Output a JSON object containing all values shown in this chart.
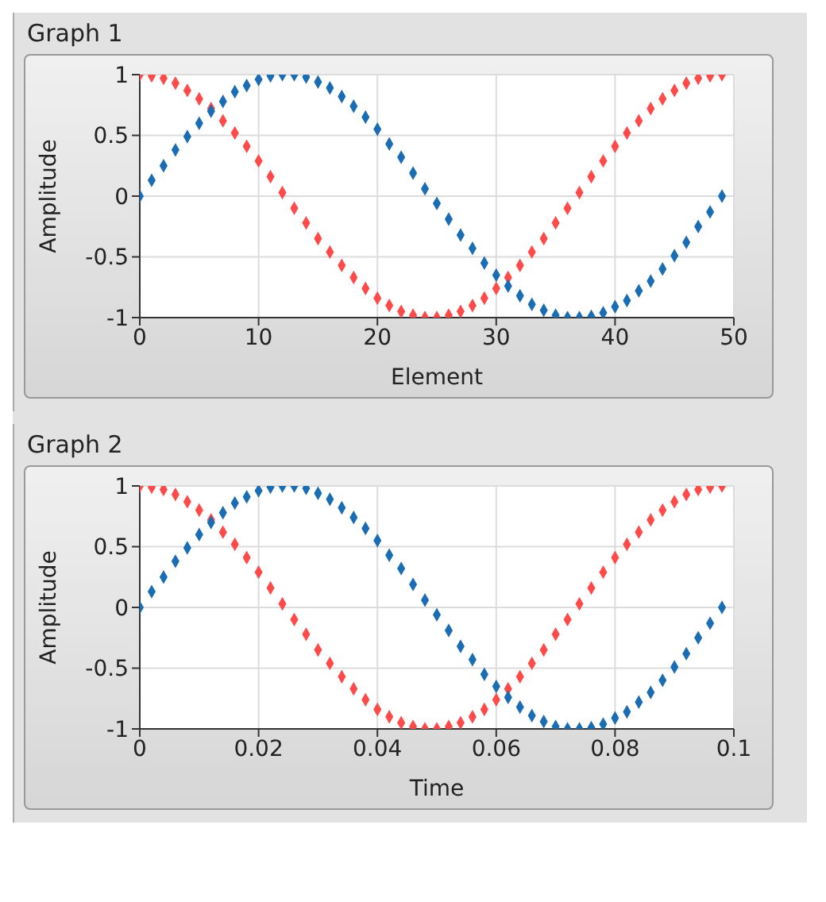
{
  "chart_data": [
    {
      "type": "scatter",
      "title": "Graph 1",
      "xlabel": "Element",
      "ylabel": "Amplitude",
      "marker": "diamond",
      "grid": true,
      "x": [
        0,
        1,
        2,
        3,
        4,
        5,
        6,
        7,
        8,
        9,
        10,
        11,
        12,
        13,
        14,
        15,
        16,
        17,
        18,
        19,
        20,
        21,
        22,
        23,
        24,
        25,
        26,
        27,
        28,
        29,
        30,
        31,
        32,
        33,
        34,
        35,
        36,
        37,
        38,
        39,
        40,
        41,
        42,
        43,
        44,
        45,
        46,
        47,
        48,
        49
      ],
      "xlim": [
        0,
        50
      ],
      "xticks": [
        0,
        10,
        20,
        30,
        40,
        50
      ],
      "ylim": [
        -1,
        1
      ],
      "yticks": [
        -1,
        -0.5,
        0,
        0.5,
        1
      ],
      "series": [
        {
          "color": "#ff4a4a",
          "values": [
            1,
            0.99,
            0.97,
            0.93,
            0.87,
            0.8,
            0.72,
            0.62,
            0.52,
            0.41,
            0.29,
            0.16,
            0.03,
            -0.1,
            -0.22,
            -0.35,
            -0.46,
            -0.57,
            -0.67,
            -0.76,
            -0.84,
            -0.9,
            -0.95,
            -0.98,
            -1,
            -1,
            -0.98,
            -0.95,
            -0.9,
            -0.84,
            -0.76,
            -0.67,
            -0.57,
            -0.46,
            -0.35,
            -0.22,
            -0.1,
            0.03,
            0.16,
            0.29,
            0.41,
            0.52,
            0.62,
            0.72,
            0.8,
            0.87,
            0.93,
            0.97,
            0.99,
            1
          ]
        },
        {
          "color": "#1a6db3",
          "values": [
            0,
            0.13,
            0.25,
            0.38,
            0.49,
            0.6,
            0.7,
            0.78,
            0.86,
            0.91,
            0.96,
            0.99,
            1,
            1,
            0.98,
            0.94,
            0.89,
            0.82,
            0.74,
            0.65,
            0.55,
            0.43,
            0.32,
            0.19,
            0.06,
            -0.06,
            -0.19,
            -0.32,
            -0.43,
            -0.55,
            -0.65,
            -0.74,
            -0.82,
            -0.89,
            -0.94,
            -0.98,
            -1,
            -1,
            -0.99,
            -0.96,
            -0.91,
            -0.86,
            -0.78,
            -0.7,
            -0.6,
            -0.49,
            -0.38,
            -0.25,
            -0.13,
            0
          ]
        }
      ]
    },
    {
      "type": "scatter",
      "title": "Graph 2",
      "xlabel": "Time",
      "ylabel": "Amplitude",
      "marker": "diamond",
      "grid": true,
      "x": [
        0,
        0.002,
        0.004,
        0.006,
        0.008,
        0.01,
        0.012,
        0.014,
        0.016,
        0.018,
        0.02,
        0.022,
        0.024,
        0.026,
        0.028,
        0.03,
        0.032,
        0.034,
        0.036,
        0.038,
        0.04,
        0.042,
        0.044,
        0.046,
        0.048,
        0.05,
        0.052,
        0.054,
        0.056,
        0.058,
        0.06,
        0.062,
        0.064,
        0.066,
        0.068,
        0.07,
        0.072,
        0.074,
        0.076,
        0.078,
        0.08,
        0.082,
        0.084,
        0.086,
        0.088,
        0.09,
        0.092,
        0.094,
        0.096,
        0.098
      ],
      "xlim": [
        0,
        0.1
      ],
      "xticks": [
        0,
        0.02,
        0.04,
        0.06,
        0.08,
        0.1
      ],
      "ylim": [
        -1,
        1
      ],
      "yticks": [
        -1,
        -0.5,
        0,
        0.5,
        1
      ],
      "series": [
        {
          "color": "#ff4a4a",
          "values": [
            1,
            0.99,
            0.97,
            0.93,
            0.87,
            0.8,
            0.72,
            0.62,
            0.52,
            0.41,
            0.29,
            0.16,
            0.03,
            -0.1,
            -0.22,
            -0.35,
            -0.46,
            -0.57,
            -0.67,
            -0.76,
            -0.84,
            -0.9,
            -0.95,
            -0.98,
            -1,
            -1,
            -0.98,
            -0.95,
            -0.9,
            -0.84,
            -0.76,
            -0.67,
            -0.57,
            -0.46,
            -0.35,
            -0.22,
            -0.1,
            0.03,
            0.16,
            0.29,
            0.41,
            0.52,
            0.62,
            0.72,
            0.8,
            0.87,
            0.93,
            0.97,
            0.99,
            1
          ]
        },
        {
          "color": "#1a6db3",
          "values": [
            0,
            0.13,
            0.25,
            0.38,
            0.49,
            0.6,
            0.7,
            0.78,
            0.86,
            0.91,
            0.96,
            0.99,
            1,
            1,
            0.98,
            0.94,
            0.89,
            0.82,
            0.74,
            0.65,
            0.55,
            0.43,
            0.32,
            0.19,
            0.06,
            -0.06,
            -0.19,
            -0.32,
            -0.43,
            -0.55,
            -0.65,
            -0.74,
            -0.82,
            -0.89,
            -0.94,
            -0.98,
            -1,
            -1,
            -0.99,
            -0.96,
            -0.91,
            -0.86,
            -0.78,
            -0.7,
            -0.6,
            -0.49,
            -0.38,
            -0.25,
            -0.13,
            0
          ]
        }
      ]
    }
  ]
}
